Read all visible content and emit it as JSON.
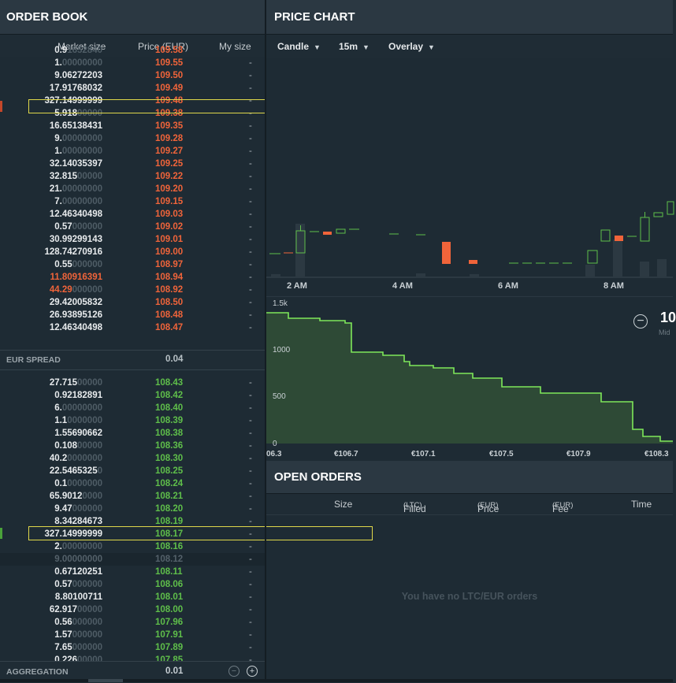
{
  "order_book": {
    "title": "ORDER BOOK",
    "columns": {
      "market_size": "Market size",
      "price": "Price (EUR)",
      "my_size": "My size"
    },
    "asks": [
      {
        "b": "0.9",
        "d": "1652840",
        "p": "109.58",
        "m": "",
        "cut": true
      },
      {
        "b": "1.",
        "d": "00000000",
        "p": "109.55",
        "m": "-"
      },
      {
        "b": "9.06272203",
        "d": "",
        "p": "109.50",
        "m": "-"
      },
      {
        "b": "17.91768032",
        "d": "",
        "p": "109.49",
        "m": "-"
      },
      {
        "b": "327.14999999",
        "d": "",
        "p": "109.48",
        "m": "-"
      },
      {
        "b": "5.918",
        "d": "00000",
        "p": "109.38",
        "m": "-"
      },
      {
        "b": "16.65138431",
        "d": "",
        "p": "109.35",
        "m": "-"
      },
      {
        "b": "9.",
        "d": "00000000",
        "p": "109.28",
        "m": "-"
      },
      {
        "b": "1.",
        "d": "00000000",
        "p": "109.27",
        "m": "-"
      },
      {
        "b": "32.14035397",
        "d": "",
        "p": "109.25",
        "m": "-"
      },
      {
        "b": "32.815",
        "d": "00000",
        "p": "109.22",
        "m": "-"
      },
      {
        "b": "21.",
        "d": "00000000",
        "p": "109.20",
        "m": "-"
      },
      {
        "b": "7.",
        "d": "00000000",
        "p": "109.15",
        "m": "-"
      },
      {
        "b": "12.46340498",
        "d": "",
        "p": "109.03",
        "m": "-"
      },
      {
        "b": "0.57",
        "d": "000000",
        "p": "109.02",
        "m": "-"
      },
      {
        "b": "30.99299143",
        "d": "",
        "p": "109.01",
        "m": "-"
      },
      {
        "b": "128.74270916",
        "d": "",
        "p": "109.00",
        "m": "-"
      },
      {
        "b": "0.55",
        "d": "000000",
        "p": "108.97",
        "m": "-"
      },
      {
        "b": "11.80916391",
        "d": "",
        "p": "108.94",
        "m": "-",
        "orange": true
      },
      {
        "b": "44.29",
        "d": "000000",
        "p": "108.92",
        "m": "-",
        "orange": true
      },
      {
        "b": "29.42005832",
        "d": "",
        "p": "108.50",
        "m": "-"
      },
      {
        "b": "26.93895126",
        "d": "",
        "p": "108.48",
        "m": "-"
      },
      {
        "b": "12.46340498",
        "d": "",
        "p": "108.47",
        "m": "-"
      }
    ],
    "spread_label": "EUR SPREAD",
    "spread_value": "0.04",
    "bids": [
      {
        "b": "27.715",
        "d": "00000",
        "p": "108.43",
        "m": "-"
      },
      {
        "b": "0.92182891",
        "d": "",
        "p": "108.42",
        "m": "-"
      },
      {
        "b": "6.",
        "d": "00000000",
        "p": "108.40",
        "m": "-"
      },
      {
        "b": "1.1",
        "d": "0000000",
        "p": "108.39",
        "m": "-"
      },
      {
        "b": "1.55690662",
        "d": "",
        "p": "108.38",
        "m": "-"
      },
      {
        "b": "0.108",
        "d": "00000",
        "p": "108.36",
        "m": "-"
      },
      {
        "b": "40.2",
        "d": "0000000",
        "p": "108.30",
        "m": "-"
      },
      {
        "b": "22.5465325",
        "d": "0",
        "p": "108.25",
        "m": "-"
      },
      {
        "b": "0.1",
        "d": "0000000",
        "p": "108.24",
        "m": "-"
      },
      {
        "b": "65.9012",
        "d": "0000",
        "p": "108.21",
        "m": "-"
      },
      {
        "b": "9.47",
        "d": "000000",
        "p": "108.20",
        "m": "-"
      },
      {
        "b": "8.34284673",
        "d": "",
        "p": "108.19",
        "m": "-"
      },
      {
        "b": "327.14999999",
        "d": "",
        "p": "108.17",
        "m": "-"
      },
      {
        "b": "2.",
        "d": "00000000",
        "p": "108.16",
        "m": "-"
      },
      {
        "b": "9.00000000",
        "d": "",
        "p": "108.12",
        "m": "-",
        "mute": true
      },
      {
        "b": "0.67120251",
        "d": "",
        "p": "108.11",
        "m": "-"
      },
      {
        "b": "0.57",
        "d": "000000",
        "p": "108.06",
        "m": "-"
      },
      {
        "b": "8.80100711",
        "d": "",
        "p": "108.01",
        "m": "-"
      },
      {
        "b": "62.917",
        "d": "00000",
        "p": "108.00",
        "m": "-"
      },
      {
        "b": "0.56",
        "d": "000000",
        "p": "107.96",
        "m": "-"
      },
      {
        "b": "1.57",
        "d": "000000",
        "p": "107.91",
        "m": "-"
      },
      {
        "b": "7.65",
        "d": "000000",
        "p": "107.89",
        "m": "-"
      },
      {
        "b": "0.226",
        "d": "00000",
        "p": "107.85",
        "m": "-",
        "cut": true
      }
    ],
    "aggregation_label": "AGGREGATION",
    "aggregation_value": "0.01",
    "highlight_color": "#e0d84a",
    "ask_color": "#f0643a",
    "bid_color": "#5fbf4a"
  },
  "price_chart": {
    "title": "PRICE CHART",
    "toolbar": {
      "type": "Candle",
      "interval": "15m",
      "overlay": "Overlay"
    },
    "time_labels": [
      "2 AM",
      "4 AM",
      "6 AM",
      "8 AM"
    ],
    "depth": {
      "y_ticks": [
        "1.5k",
        "1000",
        "500",
        "0"
      ],
      "x_ticks": [
        "06.3",
        "€106.7",
        "€107.1",
        "€107.5",
        "€107.9",
        "€108.3"
      ],
      "mid_price": "10",
      "mid_label": "Mid"
    }
  },
  "open_orders": {
    "title": "OPEN ORDERS",
    "columns": {
      "size": "Size",
      "filled": "Filled",
      "filled_unit": "(LTC)",
      "price": "Price",
      "price_unit": "(EUR)",
      "fee": "Fee",
      "fee_unit": "(EUR)",
      "time": "Time"
    },
    "empty_message": "You have no LTC/EUR orders"
  }
}
